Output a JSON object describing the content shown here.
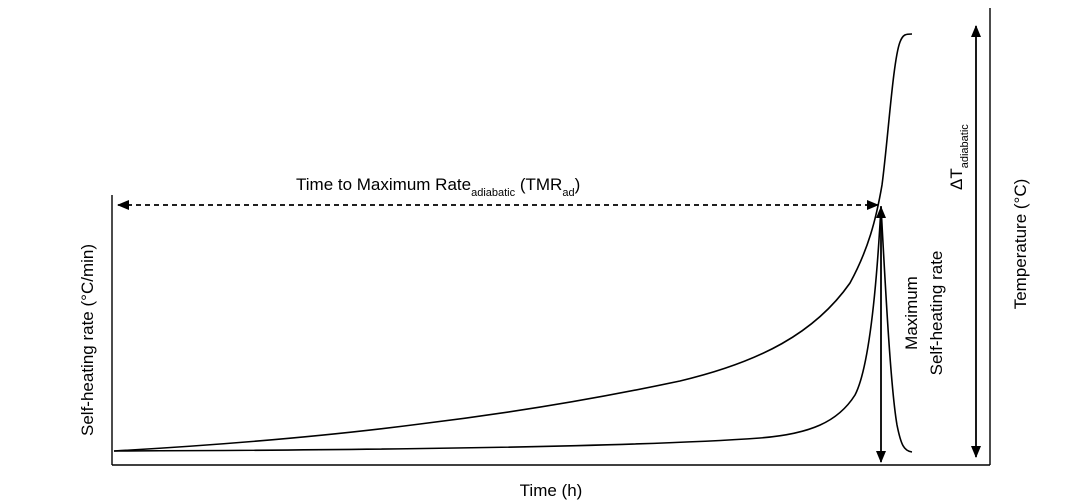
{
  "chart_data": {
    "type": "line",
    "xlabel": "Time (h)",
    "ylabel_left": "Self-heating rate (°C/min)",
    "ylabel_right": "Temperature (°C)",
    "annotations": {
      "tmr_main": "Time to Maximum Rate",
      "tmr_sub": "adiabatic",
      "tmr_paren_open": " (TMR",
      "tmr_paren_sub": "ad",
      "tmr_paren_close": ")",
      "delta_symbol": "ΔT",
      "delta_sub": "adiabatic",
      "max_rate_line1": "Maximum",
      "max_rate_line2": "Self-heating rate"
    },
    "ticks": "none",
    "grid": false,
    "legend": "none"
  }
}
